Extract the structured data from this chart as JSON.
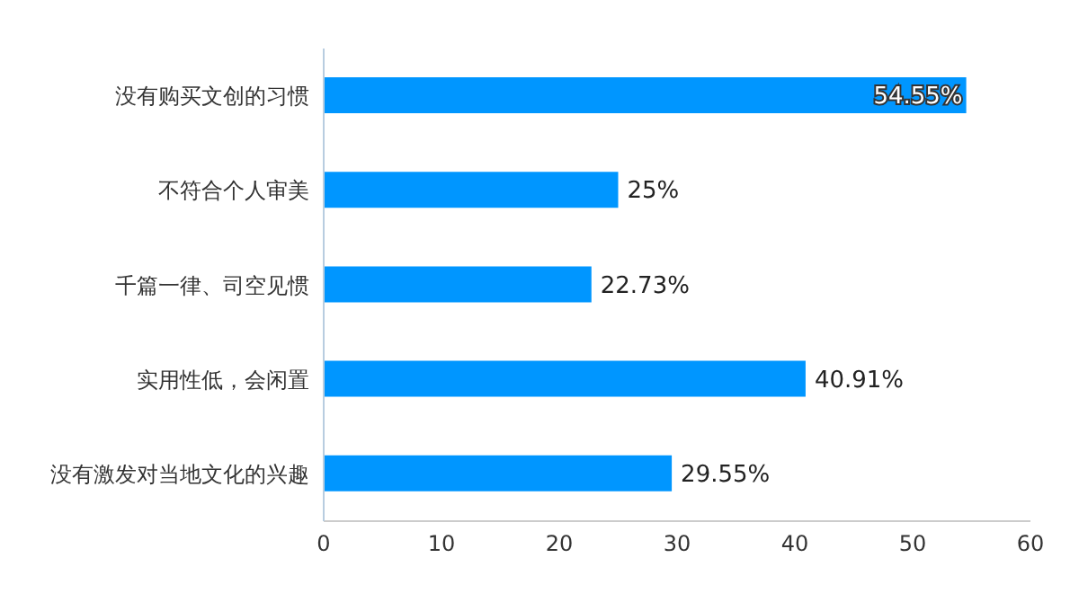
{
  "chart_data": {
    "type": "bar",
    "orientation": "horizontal",
    "categories": [
      "没有购买文创的习惯",
      "不符合个人审美",
      "千篇一律、司空见惯",
      "实用性低，会闲置",
      "没有激发对当地文化的兴趣"
    ],
    "values": [
      54.55,
      25,
      22.73,
      40.91,
      29.55
    ],
    "value_labels": [
      "54.55%",
      "25%",
      "22.73%",
      "40.91%",
      "29.55%"
    ],
    "color": "#0096ff",
    "xlim": [
      0,
      60
    ],
    "xticks": [
      0,
      10,
      20,
      30,
      40,
      50,
      60
    ],
    "grid": false
  }
}
